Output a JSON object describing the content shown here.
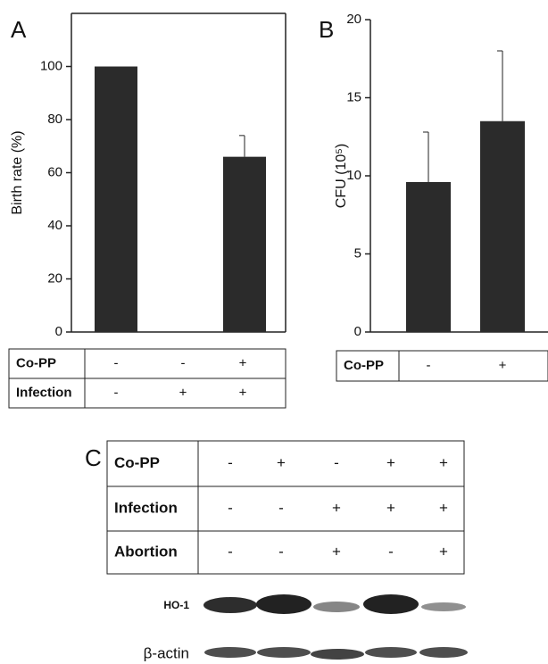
{
  "chart_data": [
    {
      "type": "bar",
      "panel": "A",
      "y_label": "Birth rate (%)",
      "values": [
        100,
        0,
        66
      ],
      "errors": [
        null,
        null,
        8
      ],
      "color": "#2b2b2b",
      "ylim": [
        0,
        120
      ],
      "yticks": [
        0,
        20,
        40,
        60,
        80,
        100
      ],
      "frame": true,
      "table": {
        "rows": [
          [
            "Co-PP",
            "-",
            "-",
            "+"
          ],
          [
            "Infection",
            "-",
            "+",
            "+"
          ]
        ]
      }
    },
    {
      "type": "bar",
      "panel": "B",
      "y_label": "CFU (10⁵)",
      "values": [
        9.6,
        13.5
      ],
      "errors": [
        3.2,
        4.5
      ],
      "color": "#2b2b2b",
      "ylim": [
        0,
        20
      ],
      "yticks": [
        0,
        5,
        10,
        15,
        20
      ],
      "frame": false,
      "table": {
        "rows": [
          [
            "Co-PP",
            "-",
            "+"
          ]
        ]
      }
    }
  ],
  "panel_c": {
    "panel": "C",
    "table": {
      "rows": [
        [
          "Co-PP",
          "-",
          "+",
          "-",
          "+",
          "+"
        ],
        [
          "Infection",
          "-",
          "-",
          "+",
          "+",
          "+"
        ],
        [
          "Abortion",
          "-",
          "-",
          "+",
          "-",
          "+"
        ]
      ]
    },
    "blots": [
      "HO-1",
      "β-actin"
    ]
  }
}
